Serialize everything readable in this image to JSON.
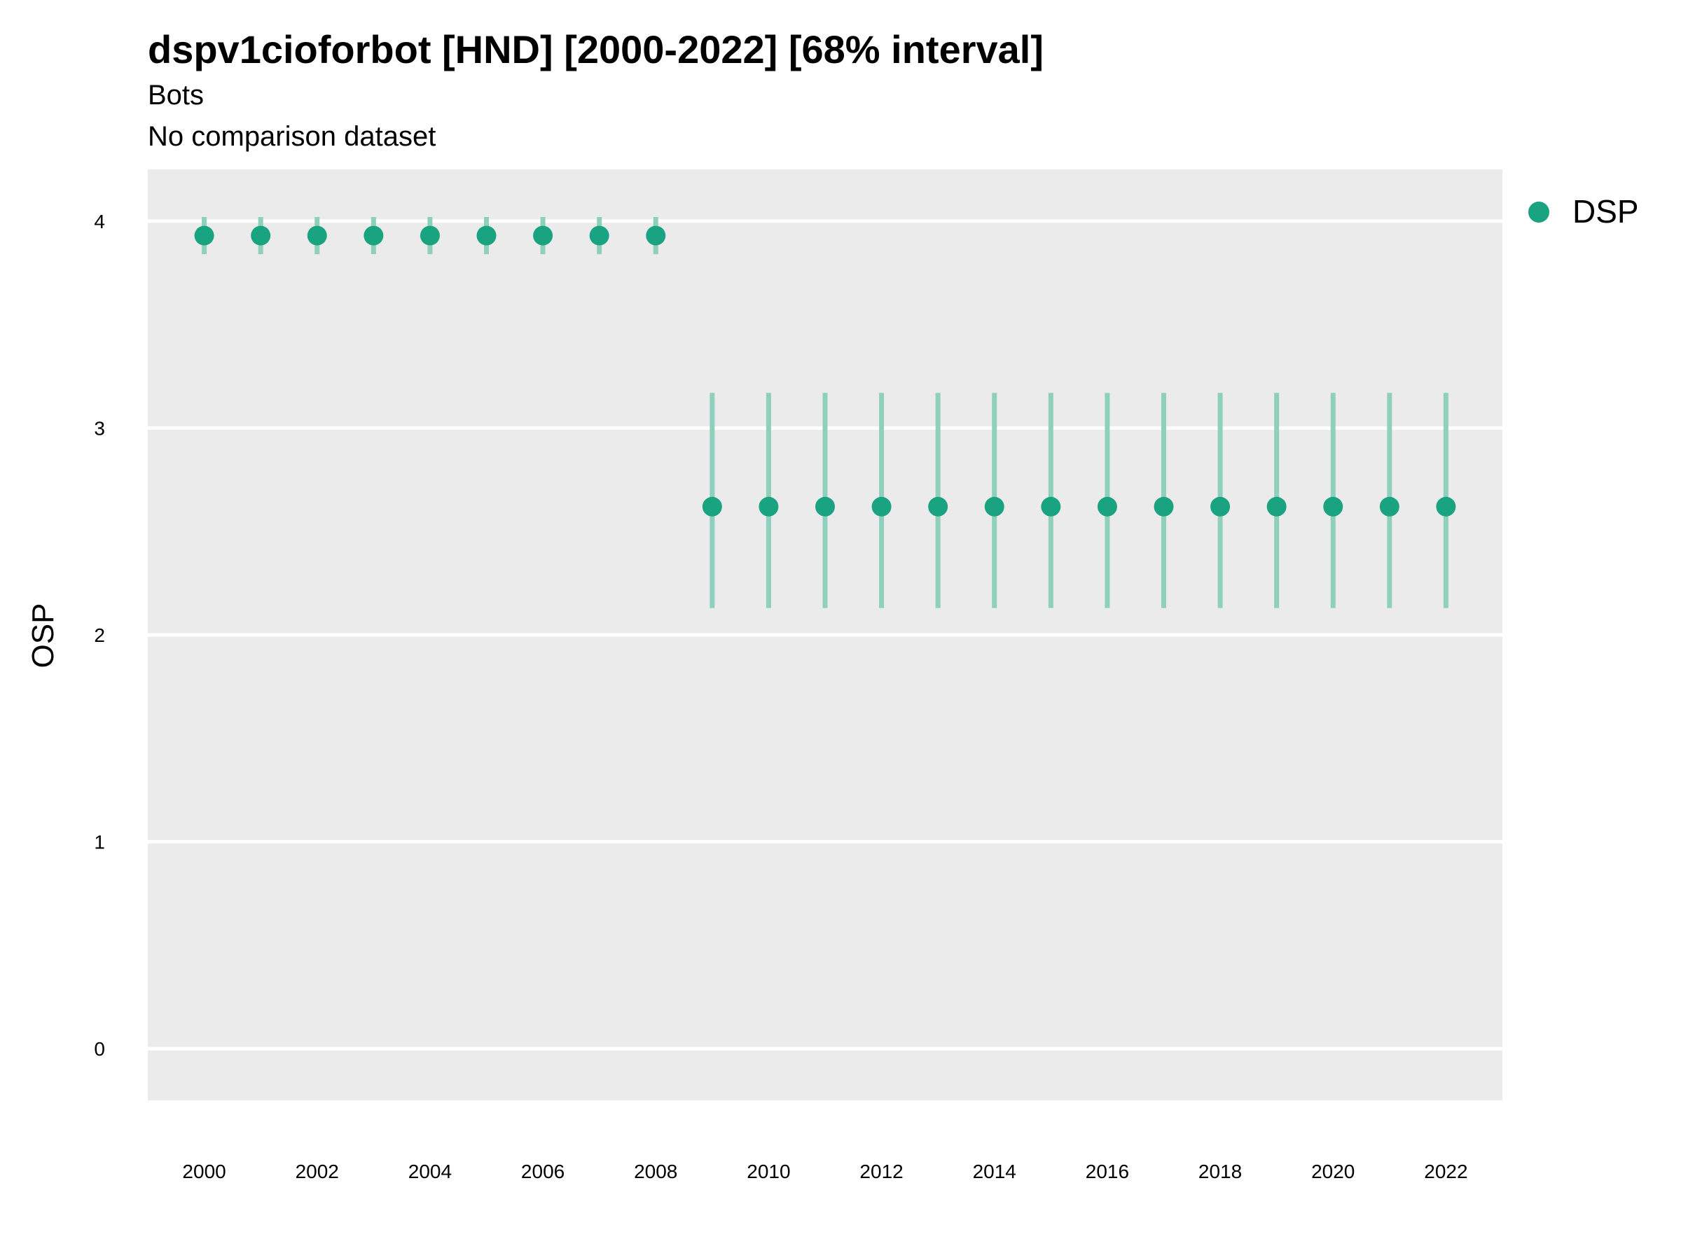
{
  "chart_data": {
    "type": "scatter",
    "title": "dspv1cioforbot [HND] [2000-2022] [68% interval]",
    "subtitle": [
      "Bots",
      "No comparison dataset"
    ],
    "xlabel": "",
    "ylabel": "OSP",
    "xlim": [
      1999,
      2023
    ],
    "ylim": [
      -0.25,
      4.25
    ],
    "x_ticks": [
      2000,
      2002,
      2004,
      2006,
      2008,
      2010,
      2012,
      2014,
      2016,
      2018,
      2020,
      2022
    ],
    "y_ticks": [
      0,
      1,
      2,
      3,
      4
    ],
    "grid": true,
    "legend_position": "top-right",
    "series": [
      {
        "name": "DSP",
        "color": "#1aa380",
        "x": [
          2000,
          2001,
          2002,
          2003,
          2004,
          2005,
          2006,
          2007,
          2008,
          2009,
          2010,
          2011,
          2012,
          2013,
          2014,
          2015,
          2016,
          2017,
          2018,
          2019,
          2020,
          2021,
          2022
        ],
        "y": [
          3.93,
          3.93,
          3.93,
          3.93,
          3.93,
          3.93,
          3.93,
          3.93,
          3.93,
          2.62,
          2.62,
          2.62,
          2.62,
          2.62,
          2.62,
          2.62,
          2.62,
          2.62,
          2.62,
          2.62,
          2.62,
          2.62,
          2.62
        ],
        "lower": [
          3.84,
          3.84,
          3.84,
          3.84,
          3.84,
          3.84,
          3.84,
          3.84,
          3.84,
          2.13,
          2.13,
          2.13,
          2.13,
          2.13,
          2.13,
          2.13,
          2.13,
          2.13,
          2.13,
          2.13,
          2.13,
          2.13,
          2.13
        ],
        "upper": [
          4.02,
          4.02,
          4.02,
          4.02,
          4.02,
          4.02,
          4.02,
          4.02,
          4.02,
          3.17,
          3.17,
          3.17,
          3.17,
          3.17,
          3.17,
          3.17,
          3.17,
          3.17,
          3.17,
          3.17,
          3.17,
          3.17,
          3.17
        ]
      }
    ]
  },
  "colors": {
    "panel_background": "#ebebeb",
    "grid_line": "#ffffff",
    "series": "#1aa380",
    "interval": "#8fd0bc"
  }
}
